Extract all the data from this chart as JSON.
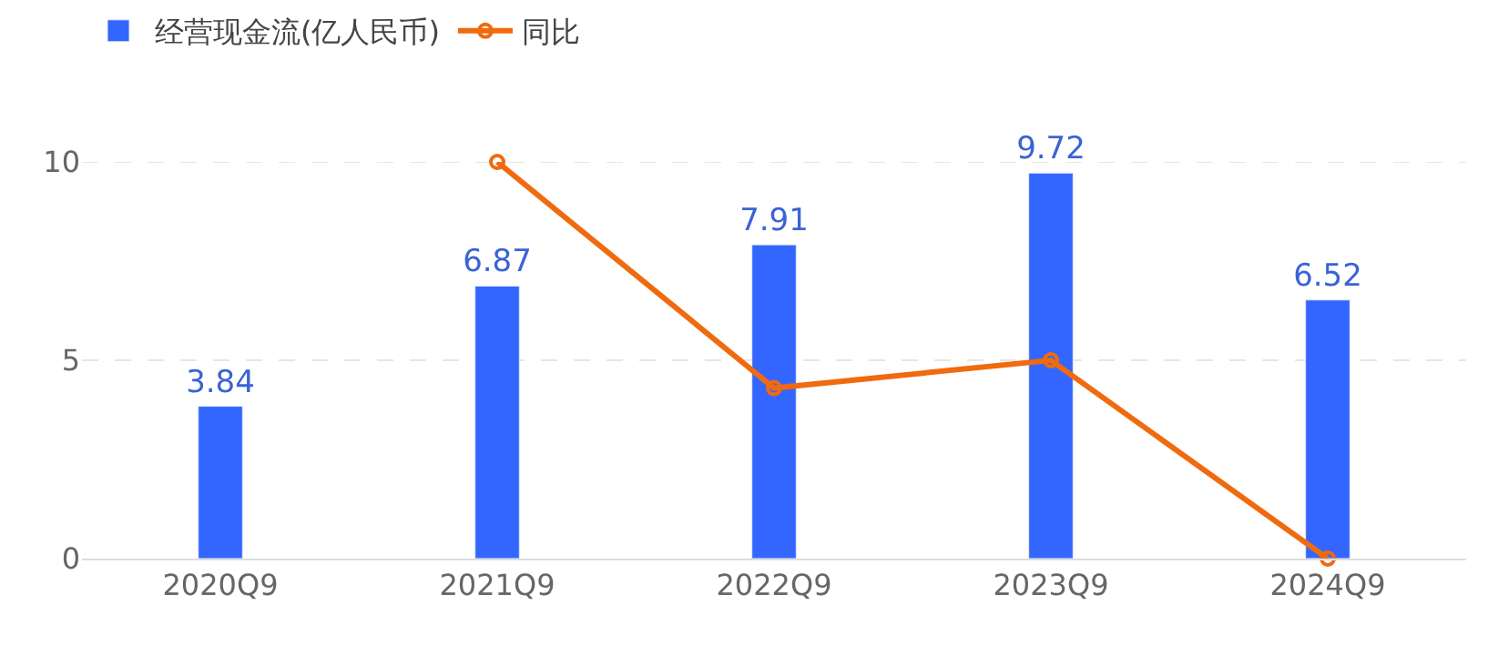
{
  "chart_data": {
    "type": "bar",
    "categories": [
      "2020Q9",
      "2021Q9",
      "2022Q9",
      "2023Q9",
      "2024Q9"
    ],
    "series": [
      {
        "name": "经营现金流(亿人民币)",
        "color": "#3366ff",
        "values": [
          3.84,
          6.87,
          7.91,
          9.72,
          6.52
        ],
        "value_labels": [
          "3.84",
          "6.87",
          "7.91",
          "9.72",
          "6.52"
        ]
      },
      {
        "name": "同比",
        "type": "line",
        "color": "#f06a0f",
        "values": [
          null,
          10,
          4.3,
          5.0,
          0
        ],
        "marker": "circle"
      }
    ],
    "ylim": [
      0,
      10
    ],
    "yticks": [
      0,
      5,
      10
    ],
    "grid": "y",
    "legend": "top left",
    "line_style": "solid"
  }
}
